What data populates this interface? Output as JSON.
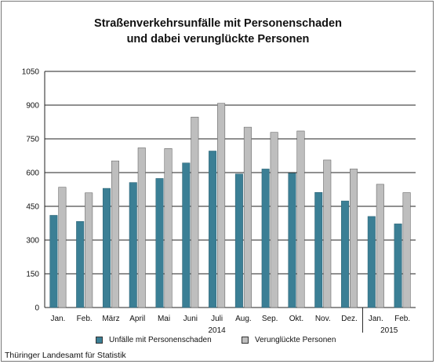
{
  "chart_data": {
    "type": "bar",
    "title": [
      "Straßenverkehrsunfälle mit Personenschaden",
      "und dabei verunglückte Personen"
    ],
    "categories": [
      "Jan.",
      "Feb.",
      "März",
      "April",
      "Mai",
      "Juni",
      "Juli",
      "Aug.",
      "Sep.",
      "Okt.",
      "Nov.",
      "Dez.",
      "Jan.",
      "Feb."
    ],
    "year_labels": [
      "2014",
      "2015"
    ],
    "series": [
      {
        "name": "Unfälle mit Personenschaden",
        "color": "#3b7f95",
        "values": [
          410,
          383,
          530,
          556,
          574,
          643,
          696,
          594,
          616,
          597,
          512,
          474,
          405,
          372
        ]
      },
      {
        "name": "Verunglückte Personen",
        "color": "#bebebe",
        "values": [
          535,
          510,
          652,
          710,
          707,
          847,
          908,
          802,
          779,
          785,
          656,
          616,
          548,
          511
        ]
      }
    ],
    "y_ticks": [
      "0",
      "150",
      "300",
      "450",
      "600",
      "750",
      "900",
      "1050"
    ],
    "ylim": [
      0,
      1050
    ],
    "grid": true,
    "legend_position": "bottom"
  },
  "source": "Thüringer Landesamt für Statistik"
}
